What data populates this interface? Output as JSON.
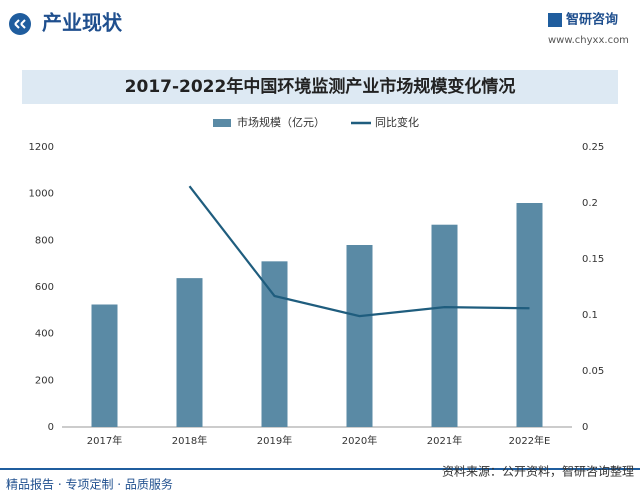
{
  "header": {
    "title": "产业现状",
    "brand": "智研咨询",
    "url": "www.chyxx.com"
  },
  "footer": {
    "left": "精品报告 · 专项定制 · 品质服务",
    "source": "资料来源：公开资料，智研咨询整理"
  },
  "chart_data": {
    "type": "combo",
    "title": "2017-2022年中国环境监测产业市场规模变化情况",
    "categories": [
      "2017年",
      "2018年",
      "2019年",
      "2020年",
      "2021年",
      "2022年E"
    ],
    "series": [
      {
        "name": "市场规模（亿元）",
        "type": "bar",
        "color": "#5a8aa5",
        "values": [
          525,
          638,
          710,
          780,
          867,
          960
        ]
      },
      {
        "name": "同比变化",
        "type": "line",
        "axis": "y2",
        "color": "#1f5d7e",
        "values": [
          null,
          0.215,
          0.117,
          0.099,
          0.107,
          0.106
        ]
      }
    ],
    "ylim": [
      0,
      1200
    ],
    "yticks": [
      0,
      200,
      400,
      600,
      800,
      1000,
      1200
    ],
    "y2lim": [
      0,
      0.25
    ],
    "y2ticks": [
      0,
      0.05,
      0.1,
      0.15,
      0.2,
      0.25
    ],
    "legend": "top",
    "grid": false
  }
}
